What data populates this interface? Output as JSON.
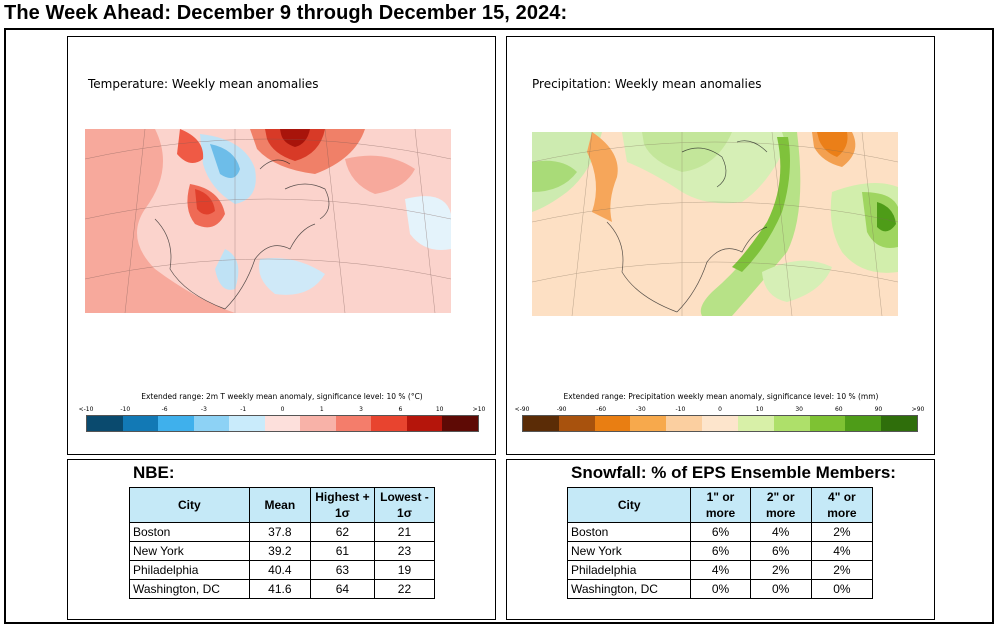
{
  "page_title": "The Week Ahead: December 9 through December 15, 2024:",
  "temperature_panel": {
    "title": "Temperature: Weekly mean anomalies",
    "legend_title": "Extended range: 2m T weekly mean anomaly, significance level: 10 % (°C)",
    "legend_ticks": [
      "<-10",
      "-10",
      "-6",
      "-3",
      "-1",
      "0",
      "1",
      "3",
      "6",
      "10",
      ">10"
    ],
    "legend_colors": [
      "#0a4a6e",
      "#1279b5",
      "#3fb0ec",
      "#8dd2f5",
      "#c9ebfb",
      "#fde0dc",
      "#f8b2a8",
      "#f47d6b",
      "#e8442f",
      "#b5150b",
      "#5e0a05"
    ]
  },
  "precipitation_panel": {
    "title": "Precipitation: Weekly mean anomalies",
    "legend_title": "Extended range: Precipitation weekly mean anomaly, significance level: 10 % (mm)",
    "legend_ticks": [
      "<-90",
      "-90",
      "-60",
      "-30",
      "-10",
      "0",
      "10",
      "30",
      "60",
      "90",
      ">90"
    ],
    "legend_colors": [
      "#5b2c06",
      "#a8520d",
      "#e97e12",
      "#f7a94c",
      "#fbcfa0",
      "#fde5cc",
      "#d8f0a8",
      "#aee06a",
      "#7ec233",
      "#4e9c18",
      "#2f6e0b"
    ]
  },
  "nbe": {
    "heading": "NBE:",
    "headers": [
      "City",
      "Mean",
      "Highest + 1σ",
      "Lowest - 1σ"
    ],
    "rows": [
      [
        "Boston",
        "37.8",
        "62",
        "21"
      ],
      [
        "New York",
        "39.2",
        "61",
        "23"
      ],
      [
        "Philadelphia",
        "40.4",
        "63",
        "19"
      ],
      [
        "Washington, DC",
        "41.6",
        "64",
        "22"
      ]
    ]
  },
  "snowfall": {
    "heading": "Snowfall: % of EPS Ensemble Members:",
    "headers": [
      "City",
      "1\" or more",
      "2\" or more",
      "4\" or more"
    ],
    "rows": [
      [
        "Boston",
        "6%",
        "4%",
        "2%"
      ],
      [
        "New York",
        "6%",
        "6%",
        "4%"
      ],
      [
        "Philadelphia",
        "4%",
        "2%",
        "2%"
      ],
      [
        "Washington, DC",
        "0%",
        "0%",
        "0%"
      ]
    ]
  }
}
